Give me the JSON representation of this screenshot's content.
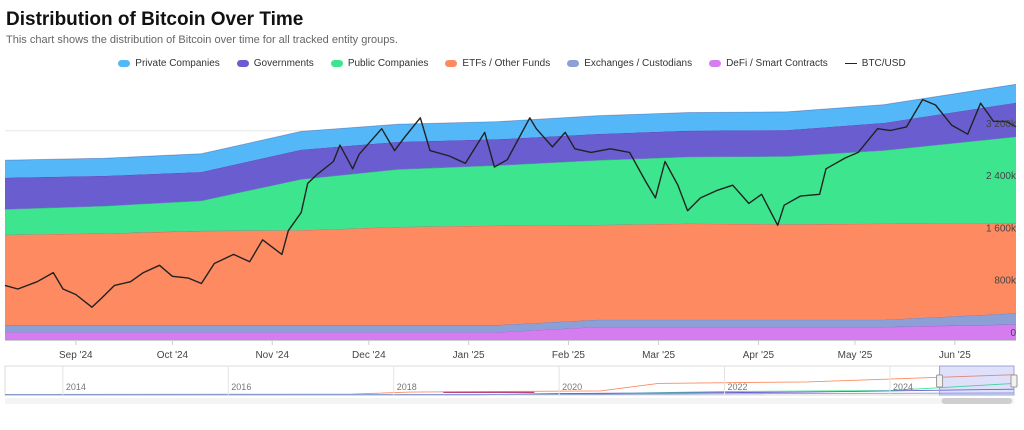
{
  "title": "Distribution of Bitcoin Over Time",
  "subtitle": "This chart shows the distribution of Bitcoin over time for all tracked entity groups.",
  "chart_data": {
    "type": "area",
    "stacked": true,
    "x_axis": {
      "start": "2024-08-10",
      "end": "2025-06-20",
      "ticks": [
        {
          "date": "2024-09-01",
          "label": "Sep '24"
        },
        {
          "date": "2024-10-01",
          "label": "Oct '24"
        },
        {
          "date": "2024-11-01",
          "label": "Nov '24"
        },
        {
          "date": "2024-12-01",
          "label": "Dec '24"
        },
        {
          "date": "2025-01-01",
          "label": "Jan '25"
        },
        {
          "date": "2025-02-01",
          "label": "Feb '25"
        },
        {
          "date": "2025-03-01",
          "label": "Mar '25"
        },
        {
          "date": "2025-04-01",
          "label": "Apr '25"
        },
        {
          "date": "2025-05-01",
          "label": "May '25"
        },
        {
          "date": "2025-06-01",
          "label": "Jun '25"
        }
      ]
    },
    "y_axis": {
      "min": 0,
      "max": 3900000,
      "ticks": [
        {
          "value": 0,
          "label": "0"
        },
        {
          "value": 800000,
          "label": "800k"
        },
        {
          "value": 1600000,
          "label": "1 600k"
        },
        {
          "value": 2400000,
          "label": "2 400k"
        },
        {
          "value": 3200000,
          "label": "3 200k"
        }
      ]
    },
    "anchor_dates": [
      "2024-08-10",
      "2024-09-10",
      "2024-10-10",
      "2024-11-10",
      "2024-12-10",
      "2025-01-10",
      "2025-02-10",
      "2025-03-10",
      "2025-04-10",
      "2025-05-10",
      "2025-06-20"
    ],
    "series": [
      {
        "name": "DeFi / Smart Contracts",
        "color": "#d47cf0",
        "values": [
          120000,
          120000,
          120000,
          120000,
          120000,
          120000,
          200000,
          200000,
          200000,
          200000,
          240000
        ]
      },
      {
        "name": "Exchanges / Custodians",
        "color": "#8c9fd6",
        "values": [
          110000,
          110000,
          110000,
          110000,
          110000,
          110000,
          110000,
          110000,
          110000,
          110000,
          170000
        ]
      },
      {
        "name": "ETFs / Other Funds",
        "color": "#fd8a60",
        "values": [
          1380000,
          1400000,
          1440000,
          1450000,
          1500000,
          1520000,
          1450000,
          1470000,
          1460000,
          1470000,
          1380000
        ]
      },
      {
        "name": "Public Companies",
        "color": "#3de68e",
        "values": [
          390000,
          420000,
          460000,
          780000,
          880000,
          920000,
          990000,
          1020000,
          1040000,
          1120000,
          1320000
        ]
      },
      {
        "name": "Governments",
        "color": "#6a5dd0",
        "values": [
          480000,
          460000,
          440000,
          450000,
          420000,
          400000,
          400000,
          400000,
          400000,
          420000,
          520000
        ]
      },
      {
        "name": "Private Companies",
        "color": "#54b7f7",
        "values": [
          270000,
          270000,
          280000,
          280000,
          270000,
          270000,
          280000,
          280000,
          280000,
          280000,
          280000
        ]
      }
    ],
    "legend_order": [
      "Private Companies",
      "Governments",
      "Public Companies",
      "ETFs / Other Funds",
      "Exchanges / Custodians",
      "DeFi / Smart Contracts"
    ],
    "line_series": {
      "name": "BTC/USD",
      "color": "#222222",
      "y_min": 45000,
      "y_max": 115000,
      "values": [
        [
          "2024-08-10",
          60000
        ],
        [
          "2024-08-14",
          59000
        ],
        [
          "2024-08-20",
          61000
        ],
        [
          "2024-08-25",
          63500
        ],
        [
          "2024-08-28",
          59000
        ],
        [
          "2024-09-01",
          57500
        ],
        [
          "2024-09-06",
          54000
        ],
        [
          "2024-09-09",
          56500
        ],
        [
          "2024-09-13",
          60000
        ],
        [
          "2024-09-18",
          61000
        ],
        [
          "2024-09-22",
          63500
        ],
        [
          "2024-09-27",
          65500
        ],
        [
          "2024-10-01",
          62500
        ],
        [
          "2024-10-06",
          62000
        ],
        [
          "2024-10-10",
          60500
        ],
        [
          "2024-10-14",
          66000
        ],
        [
          "2024-10-20",
          68500
        ],
        [
          "2024-10-25",
          66500
        ],
        [
          "2024-10-29",
          72500
        ],
        [
          "2024-11-04",
          68500
        ],
        [
          "2024-11-06",
          75000
        ],
        [
          "2024-11-10",
          80000
        ],
        [
          "2024-11-12",
          88000
        ],
        [
          "2024-11-15",
          90500
        ],
        [
          "2024-11-20",
          94000
        ],
        [
          "2024-11-22",
          98500
        ],
        [
          "2024-11-26",
          92000
        ],
        [
          "2024-11-28",
          96000
        ],
        [
          "2024-12-05",
          103000
        ],
        [
          "2024-12-09",
          97000
        ],
        [
          "2024-12-12",
          100500
        ],
        [
          "2024-12-17",
          106000
        ],
        [
          "2024-12-20",
          97000
        ],
        [
          "2024-12-26",
          95500
        ],
        [
          "2024-12-31",
          93500
        ],
        [
          "2025-01-06",
          102000
        ],
        [
          "2025-01-09",
          92500
        ],
        [
          "2025-01-13",
          94500
        ],
        [
          "2025-01-20",
          106000
        ],
        [
          "2025-01-22",
          103000
        ],
        [
          "2025-01-27",
          98000
        ],
        [
          "2025-01-31",
          102000
        ],
        [
          "2025-02-03",
          97500
        ],
        [
          "2025-02-08",
          96500
        ],
        [
          "2025-02-14",
          97500
        ],
        [
          "2025-02-20",
          96500
        ],
        [
          "2025-02-25",
          88500
        ],
        [
          "2025-02-28",
          84000
        ],
        [
          "2025-03-03",
          94000
        ],
        [
          "2025-03-07",
          87500
        ],
        [
          "2025-03-10",
          80500
        ],
        [
          "2025-03-14",
          84000
        ],
        [
          "2025-03-19",
          86000
        ],
        [
          "2025-03-24",
          87500
        ],
        [
          "2025-03-29",
          82500
        ],
        [
          "2025-04-02",
          85000
        ],
        [
          "2025-04-07",
          76500
        ],
        [
          "2025-04-09",
          82000
        ],
        [
          "2025-04-14",
          84500
        ],
        [
          "2025-04-20",
          85000
        ],
        [
          "2025-04-22",
          92000
        ],
        [
          "2025-04-28",
          95000
        ],
        [
          "2025-05-02",
          96500
        ],
        [
          "2025-05-08",
          103000
        ],
        [
          "2025-05-12",
          102500
        ],
        [
          "2025-05-17",
          103500
        ],
        [
          "2025-05-22",
          111000
        ],
        [
          "2025-05-26",
          109500
        ],
        [
          "2025-05-31",
          104000
        ],
        [
          "2025-06-05",
          101500
        ],
        [
          "2025-06-09",
          110000
        ],
        [
          "2025-06-13",
          105000
        ],
        [
          "2025-06-17",
          105000
        ],
        [
          "2025-06-20",
          103500
        ]
      ]
    },
    "navigator": {
      "year_labels": [
        "2014",
        "2016",
        "2018",
        "2020",
        "2022",
        "2024"
      ],
      "start_year": 2013.3,
      "end_year": 2025.5,
      "window": {
        "from": 2024.6,
        "to": 2025.5
      }
    }
  }
}
